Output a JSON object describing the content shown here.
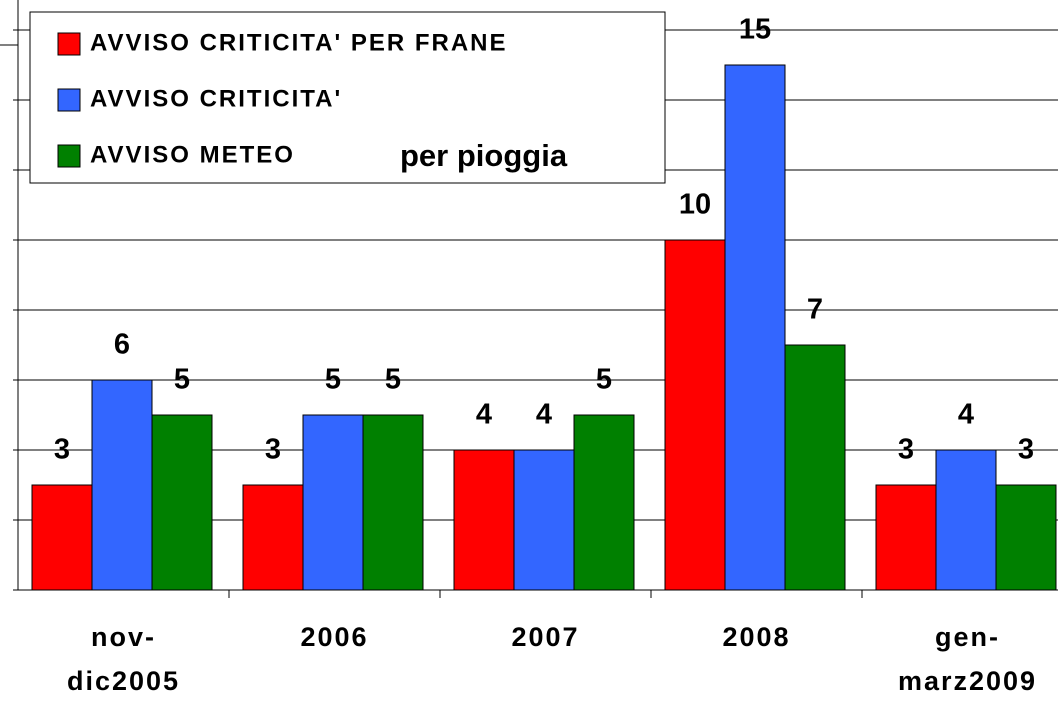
{
  "chart_data": {
    "type": "bar",
    "categories": [
      "nov-\ndic2005",
      "2006",
      "2007",
      "2008",
      "gen-\nmarz2009"
    ],
    "series": [
      {
        "name": "AVVISO CRITICITA' PER FRANE",
        "color": "#ff0000",
        "values": [
          3,
          3,
          4,
          10,
          3
        ]
      },
      {
        "name": "AVVISO CRITICITA'",
        "color": "#3366ff",
        "values": [
          6,
          5,
          4,
          15,
          4
        ]
      },
      {
        "name": "AVVISO METEO",
        "color": "#008000",
        "values": [
          5,
          5,
          5,
          7,
          3
        ]
      }
    ],
    "legend_note": "per pioggia",
    "ylim": [
      0,
      16.8
    ],
    "yticks": [
      0,
      2,
      4,
      6,
      8,
      10,
      12,
      14,
      16
    ],
    "grid": true,
    "legend": "top-left"
  }
}
